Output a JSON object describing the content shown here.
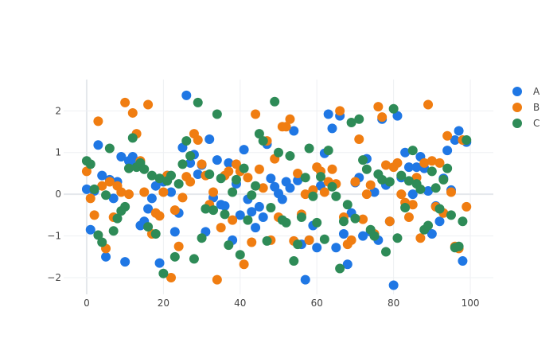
{
  "chart_data": {
    "type": "scatter",
    "title": "",
    "xlabel": "",
    "ylabel": "",
    "xlim": [
      -6,
      106
    ],
    "ylim": [
      -2.4,
      2.75
    ],
    "x_ticks": [
      0,
      20,
      40,
      60,
      80,
      100
    ],
    "x_tick_labels": [
      "0",
      "20",
      "40",
      "60",
      "80",
      "100"
    ],
    "y_ticks": [
      -2,
      -1,
      0,
      1,
      2
    ],
    "y_tick_labels": [
      "−2",
      "−1",
      "0",
      "1",
      "2"
    ],
    "grid": true,
    "legend_position": "top-right",
    "series": [
      {
        "name": "A",
        "color": "#1f77e4",
        "x": [
          0,
          1,
          2,
          3,
          4,
          5,
          6,
          7,
          8,
          9,
          10,
          11,
          12,
          13,
          14,
          15,
          16,
          17,
          18,
          19,
          20,
          21,
          22,
          23,
          24,
          25,
          26,
          27,
          28,
          29,
          30,
          31,
          32,
          33,
          34,
          35,
          36,
          37,
          38,
          39,
          40,
          41,
          42,
          43,
          44,
          45,
          46,
          47,
          48,
          49,
          50,
          51,
          52,
          53,
          54,
          55,
          56,
          57,
          58,
          59,
          60,
          61,
          62,
          63,
          64,
          65,
          66,
          67,
          68,
          69,
          70,
          71,
          72,
          73,
          74,
          75,
          76,
          77,
          78,
          79,
          80,
          81,
          82,
          83,
          84,
          85,
          86,
          87,
          88,
          89,
          90,
          91,
          92,
          93,
          94,
          95,
          96,
          97,
          98,
          99
        ],
        "y": [
          0.12,
          -0.85,
          0.08,
          1.18,
          0.45,
          -1.5,
          0.35,
          -0.1,
          0.3,
          0.9,
          -1.62,
          0.8,
          0.9,
          0.7,
          -0.75,
          -0.65,
          -0.35,
          -0.1,
          0.2,
          -1.65,
          0.3,
          0.45,
          0.05,
          -0.9,
          -0.45,
          1.12,
          2.37,
          0.75,
          0.95,
          0.48,
          0.7,
          -0.9,
          1.32,
          -0.08,
          0.82,
          -0.25,
          -0.28,
          0.75,
          -1.1,
          0.25,
          -0.5,
          1.07,
          -0.12,
          -0.42,
          -0.8,
          -0.3,
          -0.55,
          1.2,
          0.38,
          0.18,
          0.02,
          -0.12,
          0.3,
          0.15,
          1.52,
          0.33,
          -1.2,
          -2.05,
          -1.1,
          -0.75,
          -1.28,
          0.2,
          0.98,
          1.92,
          1.58,
          -1.28,
          1.88,
          -0.95,
          -1.68,
          -0.45,
          0.28,
          0.4,
          -1.0,
          0.85,
          -0.9,
          0.05,
          -1.1,
          1.8,
          0.22,
          -0.65,
          -2.18,
          1.88,
          0.4,
          1.0,
          0.65,
          0.0,
          0.65,
          0.9,
          0.62,
          0.08,
          -0.95,
          -0.28,
          -0.65,
          0.38,
          1.05,
          0.1,
          1.3,
          1.52,
          -1.6,
          1.25
        ]
      },
      {
        "name": "B",
        "color": "#f07d11",
        "x": [
          0,
          1,
          2,
          3,
          4,
          5,
          6,
          7,
          8,
          9,
          10,
          11,
          12,
          13,
          14,
          15,
          16,
          17,
          18,
          19,
          20,
          21,
          22,
          23,
          24,
          25,
          26,
          27,
          28,
          29,
          30,
          31,
          32,
          33,
          34,
          35,
          36,
          37,
          38,
          39,
          40,
          41,
          42,
          43,
          44,
          45,
          46,
          47,
          48,
          49,
          50,
          51,
          52,
          53,
          54,
          55,
          56,
          57,
          58,
          59,
          60,
          61,
          62,
          63,
          64,
          65,
          66,
          67,
          68,
          69,
          70,
          71,
          72,
          73,
          74,
          75,
          76,
          77,
          78,
          79,
          80,
          81,
          82,
          83,
          84,
          85,
          86,
          87,
          88,
          89,
          90,
          91,
          92,
          93,
          94,
          95,
          96,
          97,
          98,
          99
        ],
        "y": [
          0.55,
          -0.1,
          -0.5,
          1.75,
          0.2,
          -1.3,
          0.3,
          -0.55,
          0.2,
          0.05,
          2.2,
          0.0,
          1.95,
          1.45,
          0.8,
          0.05,
          2.15,
          -0.95,
          -0.45,
          -0.52,
          0.05,
          0.45,
          -2.0,
          -0.38,
          -1.25,
          -0.08,
          0.42,
          0.3,
          1.45,
          1.3,
          0.72,
          0.45,
          -0.25,
          0.05,
          -2.05,
          -0.8,
          0.45,
          0.55,
          -0.62,
          0.72,
          0.55,
          -1.68,
          0.4,
          -1.15,
          1.92,
          0.6,
          0.15,
          1.28,
          -1.1,
          0.85,
          -0.55,
          1.62,
          1.62,
          1.8,
          -1.12,
          0.5,
          -0.48,
          0.0,
          -1.1,
          0.1,
          0.65,
          0.55,
          0.05,
          0.3,
          0.6,
          0.25,
          2.0,
          -0.55,
          -1.2,
          -1.1,
          0.3,
          1.32,
          -0.6,
          0.0,
          0.22,
          -0.95,
          2.1,
          1.85,
          0.7,
          -0.65,
          0.65,
          0.75,
          0.0,
          -0.2,
          -0.55,
          -0.25,
          0.4,
          -1.05,
          0.75,
          2.15,
          0.8,
          -0.3,
          0.75,
          -0.45,
          1.4,
          0.05,
          -1.25,
          -1.3,
          1.3,
          -0.3
        ]
      },
      {
        "name": "C",
        "color": "#2e8b57",
        "x": [
          0,
          1,
          2,
          3,
          4,
          5,
          6,
          7,
          8,
          9,
          10,
          11,
          12,
          13,
          14,
          15,
          16,
          17,
          18,
          19,
          20,
          21,
          22,
          23,
          24,
          25,
          26,
          27,
          28,
          29,
          30,
          31,
          32,
          33,
          34,
          35,
          36,
          37,
          38,
          39,
          40,
          41,
          42,
          43,
          44,
          45,
          46,
          47,
          48,
          49,
          50,
          51,
          52,
          53,
          54,
          55,
          56,
          57,
          58,
          59,
          60,
          61,
          62,
          63,
          64,
          65,
          66,
          67,
          68,
          69,
          70,
          71,
          72,
          73,
          74,
          75,
          76,
          77,
          78,
          79,
          80,
          81,
          82,
          83,
          84,
          85,
          86,
          87,
          88,
          89,
          90,
          91,
          92,
          93,
          94,
          95,
          96,
          97,
          98,
          99
        ],
        "y": [
          0.8,
          0.72,
          0.12,
          -0.98,
          -1.15,
          -0.02,
          1.1,
          -0.88,
          -0.58,
          -0.4,
          -0.3,
          0.62,
          1.35,
          0.65,
          0.75,
          0.6,
          -0.78,
          0.45,
          -0.95,
          0.38,
          -1.9,
          0.32,
          0.45,
          -1.5,
          0.25,
          0.72,
          1.28,
          0.92,
          -1.55,
          2.2,
          -1.05,
          -0.35,
          0.48,
          -0.38,
          1.92,
          0.38,
          -0.48,
          -1.22,
          0.05,
          0.35,
          -1.45,
          0.62,
          -0.62,
          -0.02,
          0.2,
          1.45,
          1.28,
          -1.12,
          -0.32,
          2.22,
          1.0,
          -0.62,
          -0.68,
          0.92,
          -1.6,
          -1.2,
          -0.55,
          0.4,
          1.1,
          -0.05,
          -0.68,
          0.42,
          -1.08,
          1.05,
          0.18,
          -0.05,
          -1.78,
          -0.65,
          -0.25,
          1.72,
          -0.58,
          1.8,
          0.82,
          0.6,
          -0.85,
          -1.0,
          0.48,
          0.35,
          -1.38,
          0.3,
          2.05,
          -1.05,
          0.45,
          -0.32,
          0.32,
          1.05,
          0.25,
          0.12,
          -0.85,
          -0.75,
          0.55,
          0.15,
          -0.35,
          0.35,
          0.62,
          -0.5,
          -1.28,
          -1.25,
          -0.65,
          1.3
        ]
      }
    ]
  }
}
